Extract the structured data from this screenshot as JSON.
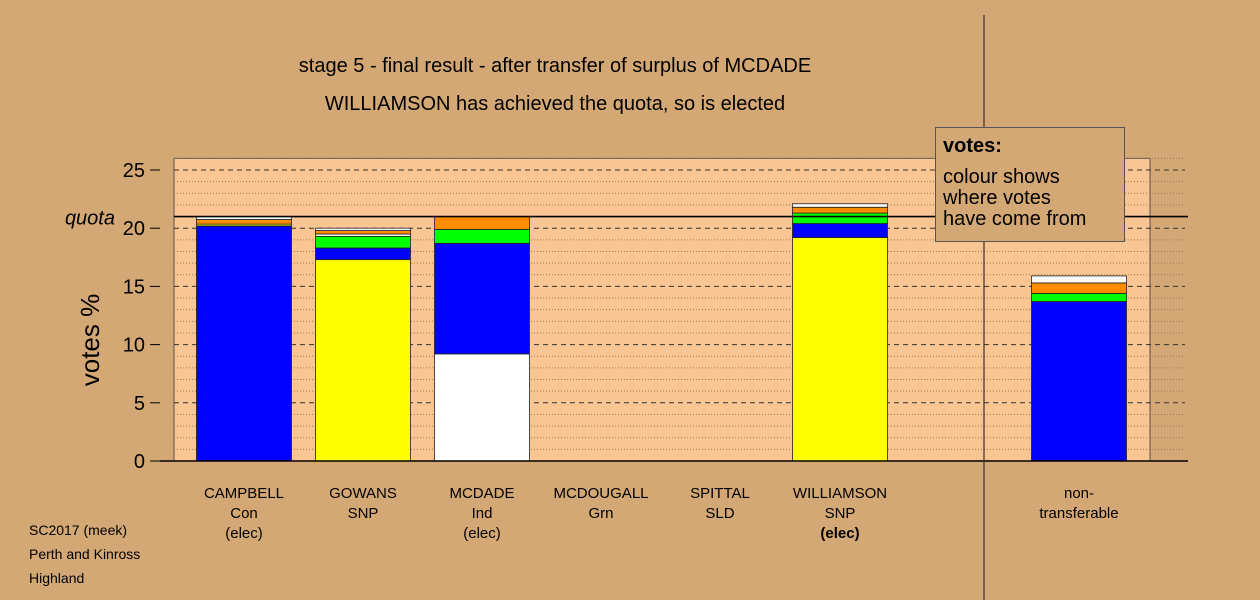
{
  "title": {
    "line1": "stage 5 - final result - after transfer of surplus of MCDADE",
    "line2": "WILLIAMSON has achieved the quota, so is elected"
  },
  "legend": {
    "title": "votes:",
    "line1": "colour shows",
    "line2": "where votes",
    "line3": "have come from"
  },
  "footer": {
    "line1": "SC2017 (meek)",
    "line2": "Perth and Kinross",
    "line3": "Highland"
  },
  "colors": {
    "background": "#d4a874",
    "plot_area": "#f8c593",
    "Con": "#0000ff",
    "SNP": "#ffff00",
    "Ind": "#ffffff",
    "Grn": "#00ff00",
    "SLD": "#ff8c00",
    "other": "#ffffff"
  },
  "chart_data": {
    "type": "bar",
    "stacked": true,
    "ylabel": "votes %",
    "ylim": [
      0,
      26
    ],
    "yticks": [
      "0",
      "5",
      "10",
      "15",
      "20",
      "25"
    ],
    "grid": true,
    "quota": 21.0,
    "quota_label": "quota",
    "categories": [
      {
        "name": "CAMPBELL",
        "party": "Con",
        "note": "(elec)"
      },
      {
        "name": "GOWANS",
        "party": "SNP",
        "note": ""
      },
      {
        "name": "MCDADE",
        "party": "Ind",
        "note": "(elec)"
      },
      {
        "name": "MCDOUGALL",
        "party": "Grn",
        "note": ""
      },
      {
        "name": "SPITTAL",
        "party": "SLD",
        "note": ""
      },
      {
        "name": "WILLIAMSON",
        "party": "SNP",
        "note": "(elec)"
      },
      {
        "name": "non-",
        "party": "transferable",
        "note": ""
      }
    ],
    "bars": [
      {
        "segments": [
          {
            "source": "Con",
            "value": 20.2
          },
          {
            "source": "SNP",
            "value": 0.15
          },
          {
            "source": "SLD",
            "value": 0.4
          },
          {
            "source": "other",
            "value": 0.25
          }
        ]
      },
      {
        "segments": [
          {
            "source": "SNP",
            "value": 17.3
          },
          {
            "source": "Con",
            "value": 1.0
          },
          {
            "source": "Grn",
            "value": 1.0
          },
          {
            "source": "other",
            "value": 0.2
          },
          {
            "source": "SLD",
            "value": 0.3
          },
          {
            "source": "other",
            "value": 0.2
          }
        ]
      },
      {
        "segments": [
          {
            "source": "Ind",
            "value": 9.2
          },
          {
            "source": "Con",
            "value": 9.5
          },
          {
            "source": "Grn",
            "value": 1.2
          },
          {
            "source": "SLD",
            "value": 1.1
          }
        ]
      },
      {
        "segments": []
      },
      {
        "segments": []
      },
      {
        "segments": [
          {
            "source": "SNP",
            "value": 19.2
          },
          {
            "source": "Con",
            "value": 1.2
          },
          {
            "source": "Grn",
            "value": 0.9
          },
          {
            "source": "SLD",
            "value": 0.5
          },
          {
            "source": "other",
            "value": 0.3
          }
        ]
      },
      {
        "segments": [
          {
            "source": "Con",
            "value": 13.7
          },
          {
            "source": "Grn",
            "value": 0.7
          },
          {
            "source": "SLD",
            "value": 0.9
          },
          {
            "source": "other",
            "value": 0.6
          }
        ]
      }
    ]
  }
}
